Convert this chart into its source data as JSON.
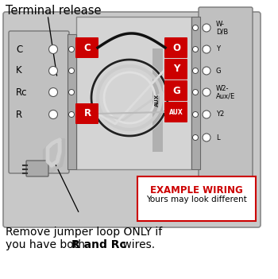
{
  "bg_color": "#ffffff",
  "title_text": "Terminal release",
  "bottom_text_line1": "Remove jumper loop ONLY if",
  "bottom_text_line2_normal": "you have both ",
  "bottom_text_line2_bold": "R and Rc",
  "bottom_text_line2_end": " wires.",
  "example_wiring_text": "EXAMPLE WIRING",
  "example_sub_text": "Yours may look different",
  "left_labels": [
    "C",
    "K",
    "Rc",
    "R"
  ],
  "right_labels": [
    "W-\nD/B",
    "Y",
    "G",
    "W2-\nAux/E",
    "Y2",
    "L"
  ],
  "red_color": "#cc0000",
  "outer_bg": "#c8c8c8",
  "block_bg": "#b5b5b5",
  "center_bg": "#d0d0d0",
  "connector_strip": "#a8a8a8"
}
